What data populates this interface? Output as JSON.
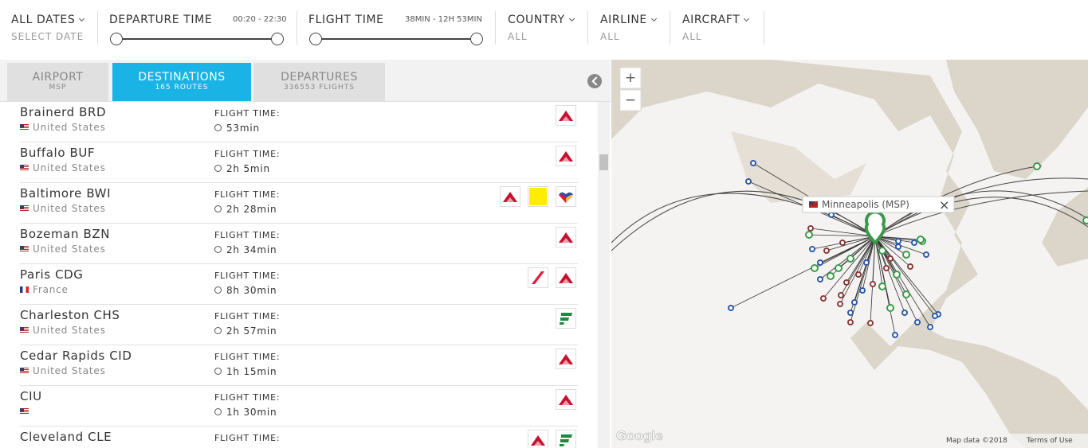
{
  "filters": [
    {
      "label": "ALL DATES",
      "value": "SELECT DATE"
    },
    {
      "label": "DEPARTURE TIME",
      "range": "00:20 - 22:30"
    },
    {
      "label": "FLIGHT TIME",
      "range": "38MIN - 12H 53MIN"
    },
    {
      "label": "COUNTRY",
      "value": "ALL"
    },
    {
      "label": "AIRLINE",
      "value": "ALL"
    },
    {
      "label": "AIRCRAFT",
      "value": "ALL"
    }
  ],
  "tabs": [
    {
      "title": "AIRPORT",
      "sub": "MSP"
    },
    {
      "title": "DESTINATIONS",
      "sub": "165 ROUTES"
    },
    {
      "title": "DEPARTURES",
      "sub": "336553 FLIGHTS"
    }
  ],
  "destinations": {
    "rows": [
      {
        "name": "Brainerd BRD",
        "country": "United States",
        "time_label": "FLIGHT TIME:",
        "time": "53min"
      },
      {
        "name": "Buffalo BUF",
        "country": "United States",
        "time_label": "FLIGHT TIME:",
        "time": "2h 5min"
      },
      {
        "name": "Baltimore BWI",
        "country": "United States",
        "time_label": "FLIGHT TIME:",
        "time": "2h 28min"
      },
      {
        "name": "Bozeman BZN",
        "country": "United States",
        "time_label": "FLIGHT TIME:",
        "time": "2h 34min"
      },
      {
        "name": "Paris CDG",
        "country": "France",
        "time_label": "FLIGHT TIME:",
        "time": "8h 30min"
      },
      {
        "name": "Charleston CHS",
        "country": "United States",
        "time_label": "FLIGHT TIME:",
        "time": "2h 57min"
      },
      {
        "name": "Cedar Rapids CID",
        "country": "United States",
        "time_label": "FLIGHT TIME:",
        "time": "1h 15min"
      },
      {
        "name": "CIU",
        "time_label": "FLIGHT TIME:",
        "time": "1h 30min"
      },
      {
        "name": "Cleveland CLE",
        "time_label": "FLIGHT TIME:"
      }
    ]
  },
  "map": {
    "popup": "Minneapolis (MSP)",
    "close": "×",
    "zoom_in": "+",
    "zoom_out": "−",
    "logo": "Google",
    "attribution": "Map data ©2018",
    "terms": "Terms of Use"
  }
}
